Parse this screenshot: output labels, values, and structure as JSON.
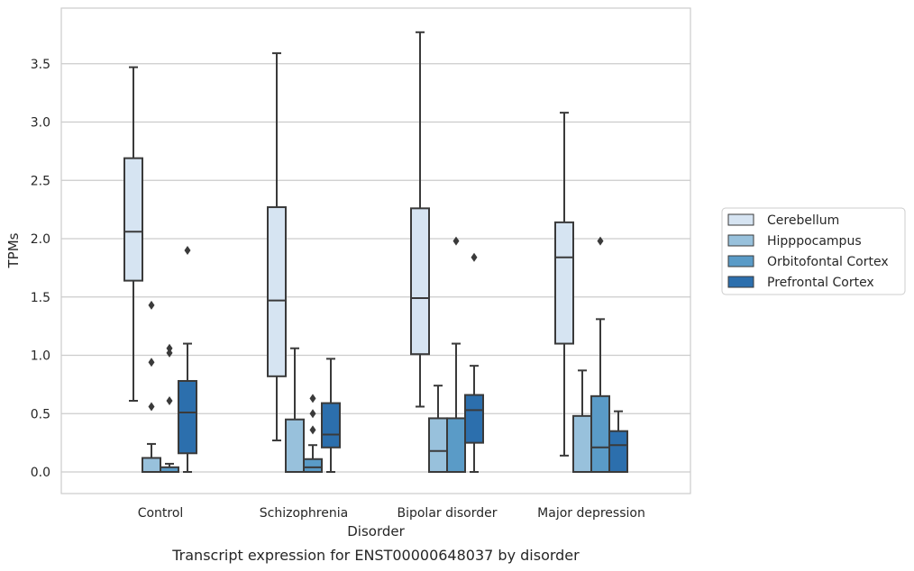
{
  "chart_data": {
    "type": "boxplot",
    "caption": "Transcript expression for ENST00000648037 by disorder",
    "xlabel": "Disorder",
    "ylabel": "TPMs",
    "ylim": [
      -0.18,
      3.9
    ],
    "yticks": [
      0.0,
      0.5,
      1.0,
      1.5,
      2.0,
      2.5,
      3.0,
      3.5
    ],
    "ytick_labels": [
      "0.0",
      "0.5",
      "1.0",
      "1.5",
      "2.0",
      "2.5",
      "3.0",
      "3.5"
    ],
    "grid": "horizontal",
    "legend_placement": "right",
    "categories": [
      "Control",
      "Schizophrenia",
      "Bipolar disorder",
      "Major depression"
    ],
    "series": [
      {
        "name": "Cerebellum",
        "color": "#d6e4f2",
        "boxes": [
          {
            "whislo": 0.61,
            "q1": 1.64,
            "med": 2.06,
            "q3": 2.69,
            "whishi": 3.47,
            "fliers": []
          },
          {
            "whislo": 0.27,
            "q1": 0.82,
            "med": 1.47,
            "q3": 2.27,
            "whishi": 3.59,
            "fliers": []
          },
          {
            "whislo": 0.56,
            "q1": 1.01,
            "med": 1.49,
            "q3": 2.26,
            "whishi": 3.77,
            "fliers": []
          },
          {
            "whislo": 0.14,
            "q1": 1.1,
            "med": 1.84,
            "q3": 2.14,
            "whishi": 3.08,
            "fliers": []
          }
        ]
      },
      {
        "name": "Hipppocampus",
        "color": "#98c1dc",
        "boxes": [
          {
            "whislo": 0.0,
            "q1": 0.0,
            "med": 0.0,
            "q3": 0.12,
            "whishi": 0.24,
            "fliers": [
              0.56,
              0.94,
              1.43
            ]
          },
          {
            "whislo": 0.0,
            "q1": 0.0,
            "med": 0.0,
            "q3": 0.45,
            "whishi": 1.06,
            "fliers": []
          },
          {
            "whislo": 0.0,
            "q1": 0.0,
            "med": 0.18,
            "q3": 0.46,
            "whishi": 0.74,
            "fliers": []
          },
          {
            "whislo": 0.0,
            "q1": 0.0,
            "med": 0.0,
            "q3": 0.48,
            "whishi": 0.87,
            "fliers": []
          }
        ]
      },
      {
        "name": "Orbitofontal Cortex",
        "color": "#5a9bc7",
        "boxes": [
          {
            "whislo": 0.0,
            "q1": 0.0,
            "med": 0.0,
            "q3": 0.04,
            "whishi": 0.07,
            "fliers": [
              0.61,
              1.02,
              1.06
            ]
          },
          {
            "whislo": 0.0,
            "q1": 0.0,
            "med": 0.04,
            "q3": 0.11,
            "whishi": 0.23,
            "fliers": [
              0.36,
              0.5,
              0.63
            ]
          },
          {
            "whislo": 0.0,
            "q1": 0.0,
            "med": 0.0,
            "q3": 0.46,
            "whishi": 1.1,
            "fliers": [
              1.98
            ]
          },
          {
            "whislo": 0.0,
            "q1": 0.0,
            "med": 0.21,
            "q3": 0.65,
            "whishi": 1.31,
            "fliers": [
              1.98
            ]
          }
        ]
      },
      {
        "name": "Prefrontal Cortex",
        "color": "#2c6fad",
        "boxes": [
          {
            "whislo": 0.0,
            "q1": 0.16,
            "med": 0.51,
            "q3": 0.78,
            "whishi": 1.1,
            "fliers": [
              1.9
            ]
          },
          {
            "whislo": 0.0,
            "q1": 0.21,
            "med": 0.32,
            "q3": 0.59,
            "whishi": 0.97,
            "fliers": []
          },
          {
            "whislo": 0.0,
            "q1": 0.25,
            "med": 0.53,
            "q3": 0.66,
            "whishi": 0.91,
            "fliers": [
              1.84
            ]
          },
          {
            "whislo": 0.0,
            "q1": 0.0,
            "med": 0.23,
            "q3": 0.35,
            "whishi": 0.52,
            "fliers": []
          }
        ]
      }
    ]
  }
}
